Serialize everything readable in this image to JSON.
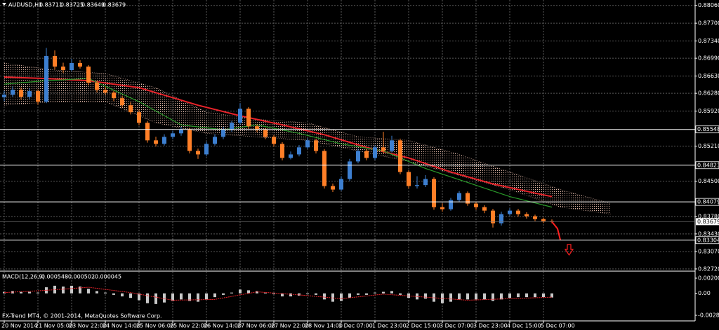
{
  "chart_data": {
    "type": "candlestick",
    "title": "AUDUSD,H1",
    "header_values": [
      0.83711,
      0.83725,
      0.83649,
      0.83679
    ],
    "footer": "FX-Trend MT4, © 2001-2014, MetaQuotes Software Corp.",
    "up_color": "#3d7fd0",
    "down_color": "#ff7f27",
    "grid": true,
    "ylim": [
      0.8269,
      0.8817
    ],
    "yticks": [
      {
        "value": 0.8806,
        "label": "0.88060"
      },
      {
        "value": 0.877,
        "label": "0.87700"
      },
      {
        "value": 0.8734,
        "label": "0.87340"
      },
      {
        "value": 0.8699,
        "label": "0.86990"
      },
      {
        "value": 0.8663,
        "label": "0.86630"
      },
      {
        "value": 0.8628,
        "label": "0.86280"
      },
      {
        "value": 0.8592,
        "label": "0.85920"
      },
      {
        "value": 0.8521,
        "label": "0.85210"
      },
      {
        "value": 0.845,
        "label": "0.84500"
      },
      {
        "value": 0.8378,
        "label": "0.83780"
      },
      {
        "value": 0.8343,
        "label": "0.83430"
      },
      {
        "value": 0.8307,
        "label": "0.83070"
      },
      {
        "value": 0.8272,
        "label": "0.82720"
      }
    ],
    "levels": [
      0.85548,
      0.84823,
      0.84079,
      0.83304
    ],
    "current_price": 0.83679,
    "x_labels": [
      "20 Nov 2014",
      "21 Nov 05:00",
      "23 Nov 22:00",
      "24 Nov 14:00",
      "25 Nov 06:00",
      "25 Nov 22:00",
      "26 Nov 14:00",
      "27 Nov 06:00",
      "27 Nov 22:00",
      "28 Nov 14:00",
      "1 Dec 07:00",
      "1 Dec 23:00",
      "2 Dec 15:00",
      "3 Dec 07:00",
      "3 Dec 23:00",
      "4 Dec 15:00",
      "5 Dec 07:00"
    ],
    "candles": [
      [
        0.862,
        0.8633,
        0.8612,
        0.86252
      ],
      [
        0.86252,
        0.8642,
        0.8621,
        0.86351
      ],
      [
        0.86351,
        0.864,
        0.8615,
        0.86209
      ],
      [
        0.86209,
        0.8638,
        0.8616,
        0.86323
      ],
      [
        0.86323,
        0.8636,
        0.8605,
        0.86109
      ],
      [
        0.86109,
        0.872,
        0.8608,
        0.87035
      ],
      [
        0.87035,
        0.8715,
        0.8676,
        0.86821
      ],
      [
        0.86821,
        0.869,
        0.8669,
        0.8675
      ],
      [
        0.8675,
        0.8698,
        0.8672,
        0.86892
      ],
      [
        0.86892,
        0.8695,
        0.8678,
        0.86821
      ],
      [
        0.86821,
        0.8685,
        0.8644,
        0.86494
      ],
      [
        0.86494,
        0.8653,
        0.863,
        0.86351
      ],
      [
        0.86351,
        0.8642,
        0.8625,
        0.86294
      ],
      [
        0.86294,
        0.8633,
        0.8612,
        0.8618
      ],
      [
        0.8618,
        0.8623,
        0.8599,
        0.86038
      ],
      [
        0.86038,
        0.861,
        0.8585,
        0.85896
      ],
      [
        0.85896,
        0.8595,
        0.8563,
        0.85682
      ],
      [
        0.85682,
        0.8572,
        0.8528,
        0.85326
      ],
      [
        0.85326,
        0.854,
        0.852,
        0.85255
      ],
      [
        0.85255,
        0.8545,
        0.8522,
        0.85397
      ],
      [
        0.85397,
        0.8552,
        0.8535,
        0.85468
      ],
      [
        0.85468,
        0.856,
        0.8542,
        0.8554
      ],
      [
        0.8554,
        0.8558,
        0.8506,
        0.85112
      ],
      [
        0.85112,
        0.8516,
        0.8495,
        0.85041
      ],
      [
        0.85041,
        0.853,
        0.85,
        0.85255
      ],
      [
        0.85255,
        0.8545,
        0.8522,
        0.85397
      ],
      [
        0.85397,
        0.856,
        0.8535,
        0.8554
      ],
      [
        0.8554,
        0.8572,
        0.855,
        0.85682
      ],
      [
        0.85682,
        0.8608,
        0.8564,
        0.85967
      ],
      [
        0.85967,
        0.86,
        0.8556,
        0.85611
      ],
      [
        0.85611,
        0.8565,
        0.8549,
        0.8554
      ],
      [
        0.8554,
        0.8558,
        0.8535,
        0.85397
      ],
      [
        0.85397,
        0.8543,
        0.852,
        0.85255
      ],
      [
        0.85255,
        0.8529,
        0.8492,
        0.8497
      ],
      [
        0.8497,
        0.851,
        0.8494,
        0.85041
      ],
      [
        0.85041,
        0.8523,
        0.85,
        0.85184
      ],
      [
        0.85184,
        0.8537,
        0.8515,
        0.85326
      ],
      [
        0.85326,
        0.8536,
        0.8506,
        0.85112
      ],
      [
        0.85112,
        0.8515,
        0.8435,
        0.844
      ],
      [
        0.844,
        0.8445,
        0.8428,
        0.84329
      ],
      [
        0.84329,
        0.846,
        0.843,
        0.84543
      ],
      [
        0.84543,
        0.8495,
        0.845,
        0.84899
      ],
      [
        0.84899,
        0.8516,
        0.8486,
        0.85112
      ],
      [
        0.85112,
        0.8515,
        0.8492,
        0.8497
      ],
      [
        0.8497,
        0.8523,
        0.8493,
        0.85184
      ],
      [
        0.85184,
        0.855,
        0.8506,
        0.85112
      ],
      [
        0.85112,
        0.8542,
        0.8508,
        0.85326
      ],
      [
        0.85326,
        0.8536,
        0.8464,
        0.84685
      ],
      [
        0.84685,
        0.8472,
        0.8435,
        0.844
      ],
      [
        0.844,
        0.846,
        0.8435,
        0.8442
      ],
      [
        0.8442,
        0.8462,
        0.8438,
        0.84543
      ],
      [
        0.84543,
        0.8458,
        0.8392,
        0.83973
      ],
      [
        0.83973,
        0.8405,
        0.8388,
        0.83931
      ],
      [
        0.83931,
        0.8416,
        0.839,
        0.84116
      ],
      [
        0.84116,
        0.843,
        0.8408,
        0.84258
      ],
      [
        0.84258,
        0.8429,
        0.84,
        0.84044
      ],
      [
        0.84044,
        0.8408,
        0.8392,
        0.83973
      ],
      [
        0.83973,
        0.8401,
        0.8385,
        0.83902
      ],
      [
        0.83902,
        0.8394,
        0.8356,
        0.83646
      ],
      [
        0.83646,
        0.8388,
        0.836,
        0.83831
      ],
      [
        0.83831,
        0.8395,
        0.838,
        0.83902
      ],
      [
        0.83902,
        0.8394,
        0.8378,
        0.83831
      ],
      [
        0.83831,
        0.8387,
        0.8374,
        0.83788
      ],
      [
        0.83788,
        0.8382,
        0.8369,
        0.83731
      ],
      [
        0.83731,
        0.8376,
        0.8365,
        0.83688
      ],
      [
        0.83688,
        0.83725,
        0.83649,
        0.83679
      ]
    ],
    "series": [
      {
        "color": "#e8232a",
        "x": [
          0,
          5,
          10,
          16,
          23,
          28,
          33,
          38,
          43,
          48,
          53,
          58,
          63,
          65
        ],
        "values": [
          0.86608,
          0.86579,
          0.86536,
          0.86394,
          0.86038,
          0.85824,
          0.85639,
          0.8544,
          0.85184,
          0.8497,
          0.84685,
          0.84443,
          0.84258,
          0.84187
        ]
      },
      {
        "color": "#2a9a2a",
        "x": [
          0,
          5,
          10,
          16,
          21,
          26,
          30,
          35,
          40,
          45,
          50,
          55,
          60,
          65
        ],
        "values": [
          0.86465,
          0.86536,
          0.86579,
          0.86109,
          0.85639,
          0.8554,
          0.85639,
          0.85468,
          0.85255,
          0.85112,
          0.84756,
          0.84472,
          0.84187,
          0.83973
        ]
      }
    ],
    "cloud": {
      "color": "#e0b8a8",
      "x": [
        0,
        6,
        12,
        18,
        24,
        30,
        36,
        42,
        48,
        54,
        60,
        66,
        72
      ],
      "upper": [
        0.86892,
        0.8675,
        0.86679,
        0.86394,
        0.85896,
        0.85753,
        0.85682,
        0.85397,
        0.85326,
        0.85041,
        0.84685,
        0.84329,
        0.84044
      ],
      "lower": [
        0.86038,
        0.86109,
        0.86109,
        0.85682,
        0.85468,
        0.85397,
        0.85326,
        0.85112,
        0.84899,
        0.84614,
        0.84329,
        0.83973,
        0.83831
      ]
    },
    "macd": {
      "name": "MACD(12,26,9)",
      "readings": [
        -0.000548,
        -0.000502,
        -4.5e-05
      ],
      "ylim": [
        -0.002885,
        0.002001
      ],
      "yticks": [
        0.002001,
        {
          "value": 0,
          "label": "0.00"
        },
        -0.002885
      ],
      "histogram": [
        0.0002,
        0.0003,
        0.0002,
        0.0002,
        0.0001,
        0.0008,
        0.001,
        0.0009,
        0.001,
        0.0009,
        0.0006,
        0.0003,
        0.0001,
        -0.0002,
        -0.0004,
        -0.0006,
        -0.0009,
        -0.0013,
        -0.0014,
        -0.0012,
        -0.001,
        -0.0008,
        -0.001,
        -0.0011,
        -0.0008,
        -0.0005,
        -0.0002,
        0.0001,
        0.0005,
        0.0004,
        0.0003,
        0.0001,
        -0.0001,
        -0.0004,
        -0.0004,
        -0.0003,
        -0.0001,
        -0.0002,
        -0.0008,
        -0.0011,
        -0.001,
        -0.0006,
        -0.0002,
        -0.0002,
        0.0001,
        0.0002,
        0.0003,
        -0.0002,
        -0.0006,
        -0.0008,
        -0.0007,
        -0.0011,
        -0.0013,
        -0.0011,
        -0.0008,
        -0.0008,
        -0.0008,
        -0.0008,
        -0.001,
        -0.0008,
        -0.0006,
        -0.0005,
        -0.0005,
        -0.0005,
        -0.0005,
        -0.000548
      ],
      "signal": {
        "color": "#e8232a",
        "x": [
          0,
          5,
          10,
          15,
          20,
          25,
          30,
          35,
          40,
          45,
          50,
          55,
          60,
          65
        ],
        "values": [
          0.0001,
          0.0004,
          0.0008,
          0.0001,
          -0.0009,
          -0.0008,
          0.0002,
          -0.0002,
          -0.0007,
          -0.0001,
          -0.0005,
          -0.0009,
          -0.0007,
          -0.000502
        ]
      }
    }
  }
}
